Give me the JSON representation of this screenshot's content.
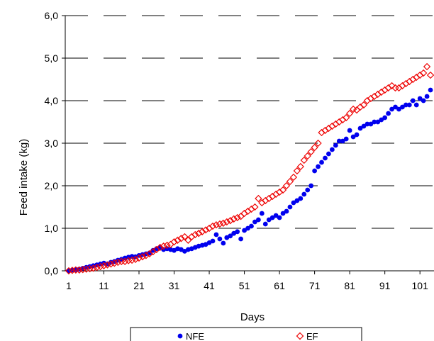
{
  "chart_data": {
    "type": "scatter",
    "xlabel": "Days",
    "ylabel": "Feed intake (kg)",
    "xlim": [
      0,
      105
    ],
    "ylim": [
      0,
      6
    ],
    "x_ticks": [
      1,
      11,
      21,
      31,
      41,
      51,
      61,
      71,
      81,
      91,
      101
    ],
    "x_tick_labels": [
      "1",
      "11",
      "21",
      "31",
      "41",
      "51",
      "61",
      "71",
      "81",
      "91",
      "101"
    ],
    "y_ticks": [
      0,
      1,
      2,
      3,
      4,
      5,
      6
    ],
    "y_tick_labels": [
      "0,0",
      "1,0",
      "2,0",
      "3,0",
      "4,0",
      "5,0",
      "6,0"
    ],
    "grid": "horizontal-dashed",
    "legend_position": "bottom",
    "series": [
      {
        "name": "NFE",
        "marker": "filled-circle",
        "color": "#0000ee",
        "points": [
          [
            1,
            0.0
          ],
          [
            2,
            0.02
          ],
          [
            3,
            0.03
          ],
          [
            4,
            0.04
          ],
          [
            5,
            0.06
          ],
          [
            6,
            0.08
          ],
          [
            7,
            0.1
          ],
          [
            8,
            0.12
          ],
          [
            9,
            0.14
          ],
          [
            10,
            0.16
          ],
          [
            11,
            0.18
          ],
          [
            12,
            0.16
          ],
          [
            13,
            0.2
          ],
          [
            14,
            0.22
          ],
          [
            15,
            0.25
          ],
          [
            16,
            0.27
          ],
          [
            17,
            0.3
          ],
          [
            18,
            0.32
          ],
          [
            19,
            0.34
          ],
          [
            20,
            0.33
          ],
          [
            21,
            0.36
          ],
          [
            22,
            0.38
          ],
          [
            23,
            0.4
          ],
          [
            24,
            0.42
          ],
          [
            25,
            0.48
          ],
          [
            26,
            0.52
          ],
          [
            27,
            0.55
          ],
          [
            28,
            0.5
          ],
          [
            29,
            0.52
          ],
          [
            30,
            0.5
          ],
          [
            31,
            0.48
          ],
          [
            32,
            0.52
          ],
          [
            33,
            0.5
          ],
          [
            34,
            0.46
          ],
          [
            35,
            0.5
          ],
          [
            36,
            0.52
          ],
          [
            37,
            0.55
          ],
          [
            38,
            0.58
          ],
          [
            39,
            0.6
          ],
          [
            40,
            0.62
          ],
          [
            41,
            0.66
          ],
          [
            42,
            0.7
          ],
          [
            43,
            0.85
          ],
          [
            44,
            0.75
          ],
          [
            45,
            0.65
          ],
          [
            46,
            0.78
          ],
          [
            47,
            0.82
          ],
          [
            48,
            0.88
          ],
          [
            49,
            0.92
          ],
          [
            50,
            0.75
          ],
          [
            51,
            0.95
          ],
          [
            52,
            1.0
          ],
          [
            53,
            1.05
          ],
          [
            54,
            1.15
          ],
          [
            55,
            1.2
          ],
          [
            56,
            1.35
          ],
          [
            57,
            1.1
          ],
          [
            58,
            1.2
          ],
          [
            59,
            1.25
          ],
          [
            60,
            1.3
          ],
          [
            61,
            1.25
          ],
          [
            62,
            1.35
          ],
          [
            63,
            1.4
          ],
          [
            64,
            1.5
          ],
          [
            65,
            1.6
          ],
          [
            66,
            1.65
          ],
          [
            67,
            1.7
          ],
          [
            68,
            1.8
          ],
          [
            69,
            1.9
          ],
          [
            70,
            2.0
          ],
          [
            71,
            2.35
          ],
          [
            72,
            2.45
          ],
          [
            73,
            2.55
          ],
          [
            74,
            2.65
          ],
          [
            75,
            2.75
          ],
          [
            76,
            2.85
          ],
          [
            77,
            2.95
          ],
          [
            78,
            3.05
          ],
          [
            79,
            3.05
          ],
          [
            80,
            3.1
          ],
          [
            81,
            3.3
          ],
          [
            82,
            3.15
          ],
          [
            83,
            3.2
          ],
          [
            84,
            3.35
          ],
          [
            85,
            3.4
          ],
          [
            86,
            3.45
          ],
          [
            87,
            3.45
          ],
          [
            88,
            3.5
          ],
          [
            89,
            3.5
          ],
          [
            90,
            3.55
          ],
          [
            91,
            3.6
          ],
          [
            92,
            3.7
          ],
          [
            93,
            3.8
          ],
          [
            94,
            3.85
          ],
          [
            95,
            3.8
          ],
          [
            96,
            3.85
          ],
          [
            97,
            3.9
          ],
          [
            98,
            3.9
          ],
          [
            99,
            4.0
          ],
          [
            100,
            3.9
          ],
          [
            101,
            4.05
          ],
          [
            102,
            4.0
          ],
          [
            103,
            4.1
          ],
          [
            104,
            4.25
          ],
          [
            105,
            4.15
          ],
          [
            106,
            4.22
          ]
        ]
      },
      {
        "name": "EF",
        "marker": "open-diamond",
        "color": "#ee0000",
        "points": [
          [
            1,
            0.0
          ],
          [
            2,
            0.01
          ],
          [
            3,
            0.02
          ],
          [
            4,
            0.02
          ],
          [
            5,
            0.03
          ],
          [
            6,
            0.04
          ],
          [
            7,
            0.05
          ],
          [
            8,
            0.06
          ],
          [
            9,
            0.08
          ],
          [
            10,
            0.1
          ],
          [
            11,
            0.12
          ],
          [
            12,
            0.14
          ],
          [
            13,
            0.16
          ],
          [
            14,
            0.18
          ],
          [
            15,
            0.2
          ],
          [
            16,
            0.22
          ],
          [
            17,
            0.22
          ],
          [
            18,
            0.24
          ],
          [
            19,
            0.25
          ],
          [
            20,
            0.27
          ],
          [
            21,
            0.3
          ],
          [
            22,
            0.33
          ],
          [
            23,
            0.36
          ],
          [
            24,
            0.4
          ],
          [
            25,
            0.45
          ],
          [
            26,
            0.5
          ],
          [
            27,
            0.55
          ],
          [
            28,
            0.58
          ],
          [
            29,
            0.6
          ],
          [
            30,
            0.62
          ],
          [
            31,
            0.68
          ],
          [
            32,
            0.72
          ],
          [
            33,
            0.76
          ],
          [
            34,
            0.8
          ],
          [
            35,
            0.72
          ],
          [
            36,
            0.8
          ],
          [
            37,
            0.85
          ],
          [
            38,
            0.88
          ],
          [
            39,
            0.92
          ],
          [
            40,
            0.96
          ],
          [
            41,
            1.0
          ],
          [
            42,
            1.05
          ],
          [
            43,
            1.08
          ],
          [
            44,
            1.1
          ],
          [
            45,
            1.12
          ],
          [
            46,
            1.15
          ],
          [
            47,
            1.18
          ],
          [
            48,
            1.22
          ],
          [
            49,
            1.25
          ],
          [
            50,
            1.28
          ],
          [
            51,
            1.35
          ],
          [
            52,
            1.4
          ],
          [
            53,
            1.45
          ],
          [
            54,
            1.5
          ],
          [
            55,
            1.7
          ],
          [
            56,
            1.6
          ],
          [
            57,
            1.65
          ],
          [
            58,
            1.7
          ],
          [
            59,
            1.75
          ],
          [
            60,
            1.8
          ],
          [
            61,
            1.85
          ],
          [
            62,
            1.9
          ],
          [
            63,
            2.0
          ],
          [
            64,
            2.1
          ],
          [
            65,
            2.2
          ],
          [
            66,
            2.35
          ],
          [
            67,
            2.45
          ],
          [
            68,
            2.6
          ],
          [
            69,
            2.7
          ],
          [
            70,
            2.8
          ],
          [
            71,
            2.9
          ],
          [
            72,
            3.0
          ],
          [
            73,
            3.25
          ],
          [
            74,
            3.3
          ],
          [
            75,
            3.35
          ],
          [
            76,
            3.4
          ],
          [
            77,
            3.45
          ],
          [
            78,
            3.5
          ],
          [
            79,
            3.55
          ],
          [
            80,
            3.6
          ],
          [
            81,
            3.7
          ],
          [
            82,
            3.8
          ],
          [
            83,
            3.78
          ],
          [
            84,
            3.85
          ],
          [
            85,
            3.9
          ],
          [
            86,
            4.0
          ],
          [
            87,
            4.05
          ],
          [
            88,
            4.1
          ],
          [
            89,
            4.15
          ],
          [
            90,
            4.2
          ],
          [
            91,
            4.25
          ],
          [
            92,
            4.3
          ],
          [
            93,
            4.35
          ],
          [
            94,
            4.3
          ],
          [
            95,
            4.3
          ],
          [
            96,
            4.35
          ],
          [
            97,
            4.4
          ],
          [
            98,
            4.45
          ],
          [
            99,
            4.5
          ],
          [
            100,
            4.55
          ],
          [
            101,
            4.6
          ],
          [
            102,
            4.65
          ],
          [
            103,
            4.8
          ],
          [
            104,
            4.6
          ],
          [
            105,
            4.55
          ],
          [
            106,
            4.75
          ]
        ]
      }
    ]
  }
}
